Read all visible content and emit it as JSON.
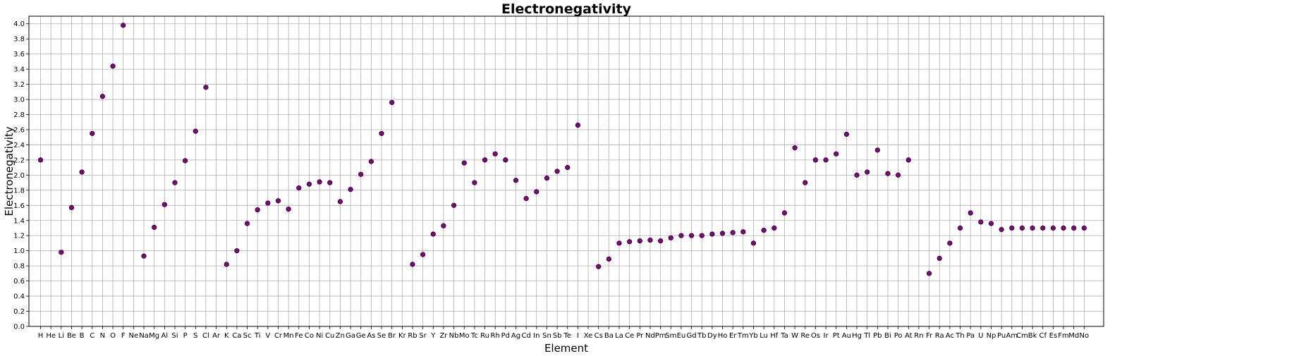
{
  "chart_data": {
    "type": "scatter",
    "title": "Electronegativity",
    "xlabel": "Element",
    "ylabel": "Electronegativity",
    "ylim": [
      0,
      4.1
    ],
    "yticks": [
      "0.0",
      "0.2",
      "0.4",
      "0.6",
      "0.8",
      "1.0",
      "1.2",
      "1.4",
      "1.6",
      "1.8",
      "2.0",
      "2.2",
      "2.4",
      "2.6",
      "2.8",
      "3.0",
      "3.2",
      "3.4",
      "3.6",
      "3.8",
      "4.0"
    ],
    "grid": true,
    "marker_color": "#800080",
    "categories": [
      "H",
      "He",
      "Li",
      "Be",
      "B",
      "C",
      "N",
      "O",
      "F",
      "Ne",
      "Na",
      "Mg",
      "Al",
      "Si",
      "P",
      "S",
      "Cl",
      "Ar",
      "K",
      "Ca",
      "Sc",
      "Ti",
      "V",
      "Cr",
      "Mn",
      "Fe",
      "Co",
      "Ni",
      "Cu",
      "Zn",
      "Ga",
      "Ge",
      "As",
      "Se",
      "Br",
      "Kr",
      "Rb",
      "Sr",
      "Y",
      "Zr",
      "Nb",
      "Mo",
      "Tc",
      "Ru",
      "Rh",
      "Pd",
      "Ag",
      "Cd",
      "In",
      "Sn",
      "Sb",
      "Te",
      "I",
      "Xe",
      "Cs",
      "Ba",
      "La",
      "Ce",
      "Pr",
      "Nd",
      "Pm",
      "Sm",
      "Eu",
      "Gd",
      "Tb",
      "Dy",
      "Ho",
      "Er",
      "Tm",
      "Yb",
      "Lu",
      "Hf",
      "Ta",
      "W",
      "Re",
      "Os",
      "Ir",
      "Pt",
      "Au",
      "Hg",
      "Tl",
      "Pb",
      "Bi",
      "Po",
      "At",
      "Rn",
      "Fr",
      "Ra",
      "Ac",
      "Th",
      "Pa",
      "U",
      "Np",
      "Pu",
      "Am",
      "Cm",
      "Bk",
      "Cf",
      "Es",
      "Fm",
      "Md",
      "No"
    ],
    "values": [
      2.2,
      null,
      0.98,
      1.57,
      2.04,
      2.55,
      3.04,
      3.44,
      3.98,
      null,
      0.93,
      1.31,
      1.61,
      1.9,
      2.19,
      2.58,
      3.16,
      null,
      0.82,
      1.0,
      1.36,
      1.54,
      1.63,
      1.66,
      1.55,
      1.83,
      1.88,
      1.91,
      1.9,
      1.65,
      1.81,
      2.01,
      2.18,
      2.55,
      2.96,
      null,
      0.82,
      0.95,
      1.22,
      1.33,
      1.6,
      2.16,
      1.9,
      2.2,
      2.28,
      2.2,
      1.93,
      1.69,
      1.78,
      1.96,
      2.05,
      2.1,
      2.66,
      null,
      0.79,
      0.89,
      1.1,
      1.12,
      1.13,
      1.14,
      1.13,
      1.17,
      1.2,
      1.2,
      1.2,
      1.22,
      1.23,
      1.24,
      1.25,
      1.1,
      1.27,
      1.3,
      1.5,
      2.36,
      1.9,
      2.2,
      2.2,
      2.28,
      2.54,
      2.0,
      2.04,
      2.33,
      2.02,
      2.0,
      2.2,
      null,
      0.7,
      0.9,
      1.1,
      1.3,
      1.5,
      1.38,
      1.36,
      1.28,
      1.3,
      1.3,
      1.3,
      1.3,
      1.3,
      1.3,
      1.3,
      1.3
    ]
  }
}
